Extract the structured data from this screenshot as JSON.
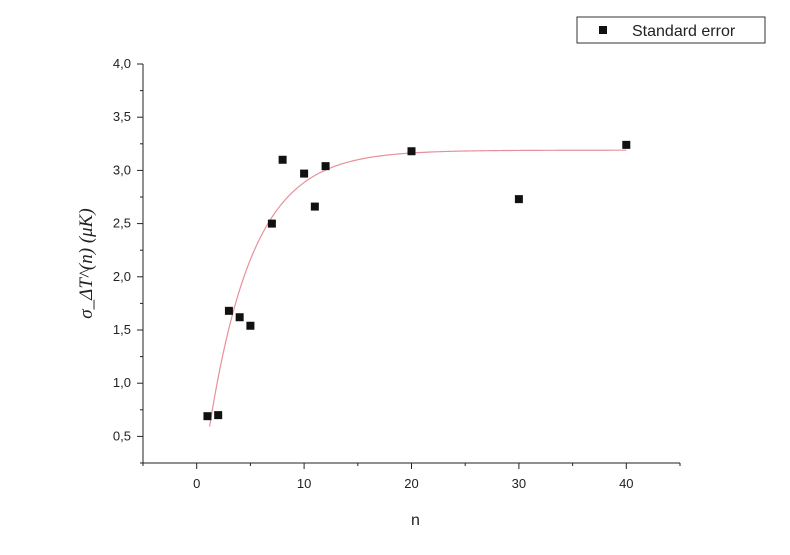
{
  "chart_data": {
    "type": "scatter",
    "xlabel": "n",
    "ylabel": "σ_ΔT^(n) (μK)",
    "xlim": [
      -5,
      45
    ],
    "ylim": [
      0.25,
      4.0
    ],
    "xticks": [
      0,
      10,
      20,
      30,
      40
    ],
    "xtick_labels": [
      "0",
      "10",
      "20",
      "30",
      "40"
    ],
    "yticks": [
      0.5,
      1.0,
      1.5,
      2.0,
      2.5,
      3.0,
      3.5,
      4.0
    ],
    "ytick_labels": [
      "0,5",
      "1,0",
      "1,5",
      "2,0",
      "2,5",
      "3,0",
      "3,5",
      "4,0"
    ],
    "legend_position": "top-right",
    "series": [
      {
        "name": "Standard error",
        "marker": "square",
        "color": "#111111",
        "x": [
          1,
          2,
          3,
          4,
          5,
          7,
          8,
          10,
          11,
          12,
          20,
          30,
          40
        ],
        "y": [
          0.69,
          0.7,
          1.68,
          1.62,
          1.54,
          2.5,
          3.1,
          2.97,
          2.66,
          3.04,
          3.18,
          2.73,
          3.24
        ]
      }
    ],
    "fit_curve": {
      "color": "#e8909a",
      "x_range": [
        1.2,
        40
      ],
      "model": "y = a - b*exp(-x/c)",
      "a": 3.19,
      "b": 3.48,
      "c": 4.1
    }
  }
}
